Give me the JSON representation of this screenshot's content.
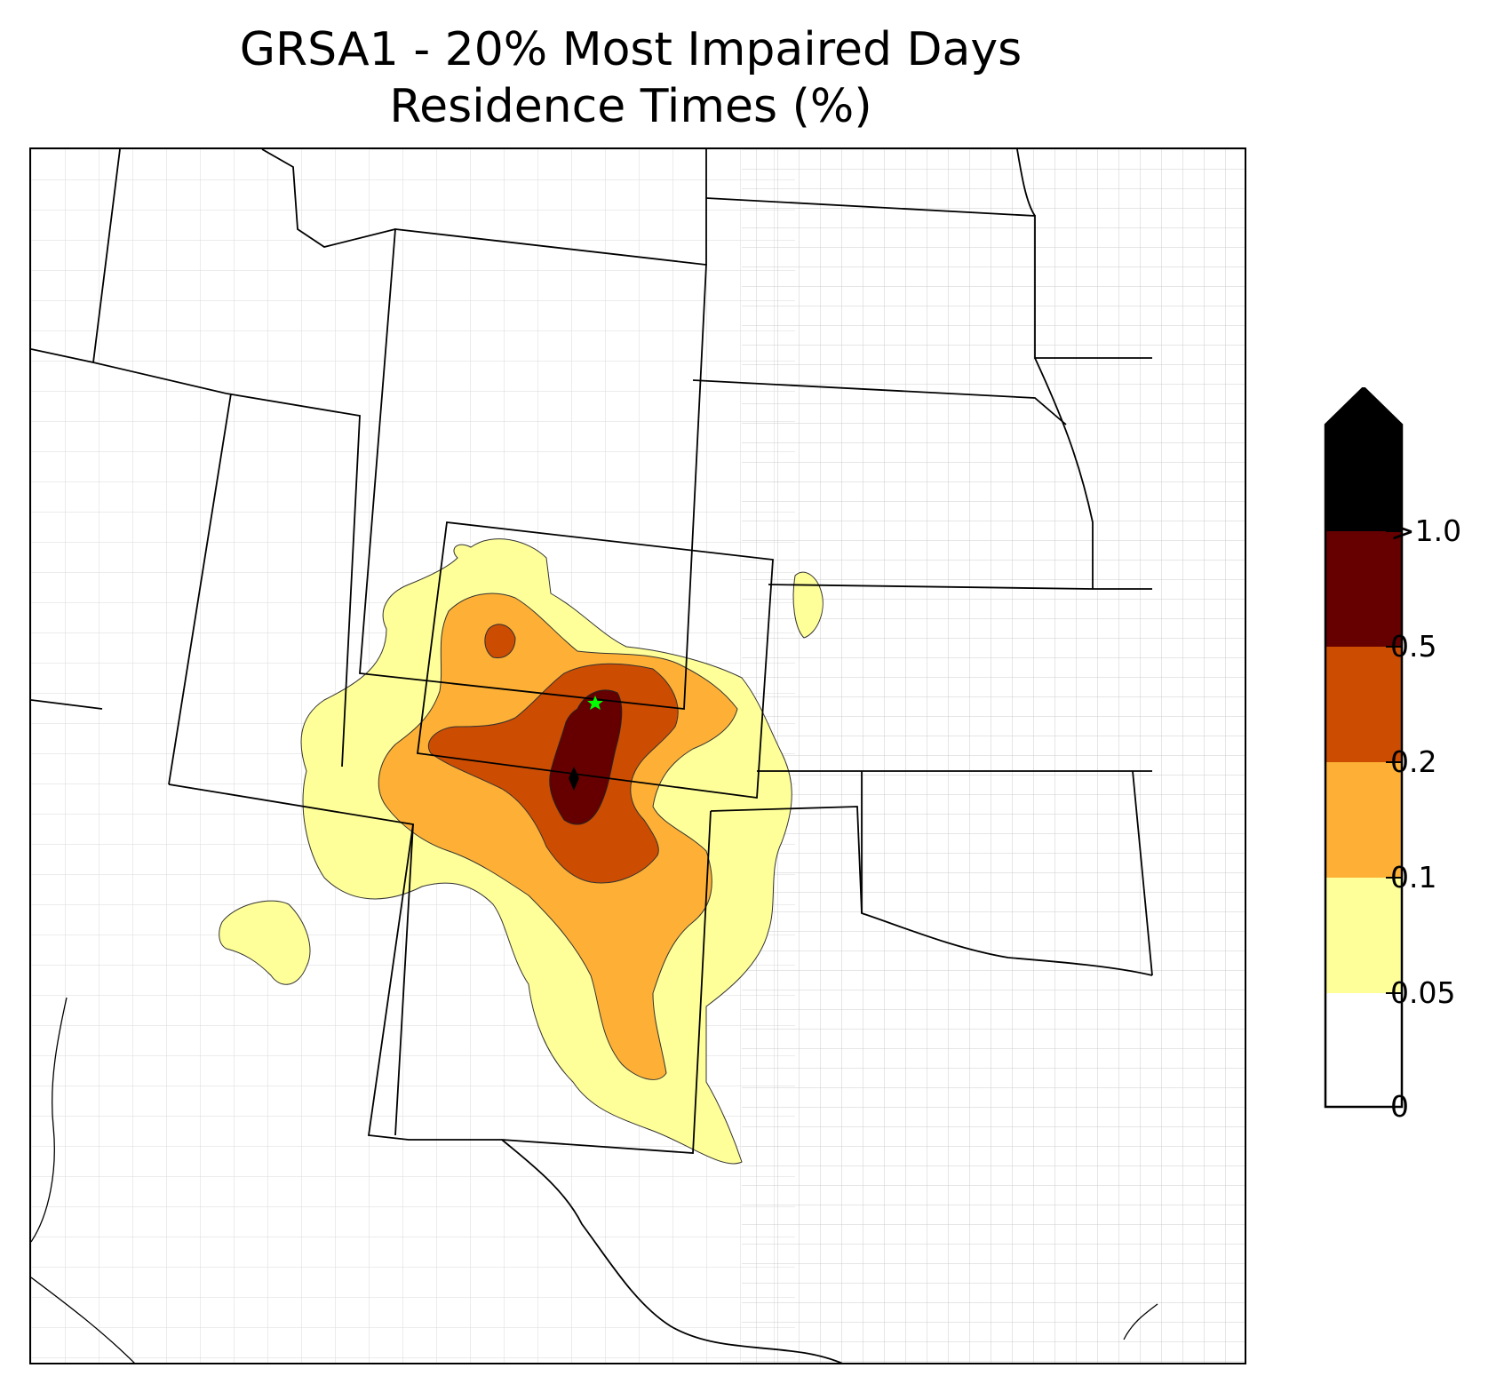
{
  "title": {
    "line1": "GRSA1 - 20% Most Impaired Days",
    "line2": "Residence Times (%)"
  },
  "colorbar": {
    "labels": [
      "0",
      "0.05",
      "0.1",
      "0.2",
      "0.5",
      ">1.0"
    ],
    "bins": [
      {
        "from": 0,
        "to": 0.05,
        "color": "#ffffff"
      },
      {
        "from": 0.05,
        "to": 0.1,
        "color": "#ffff99"
      },
      {
        "from": 0.1,
        "to": 0.2,
        "color": "#fdb035"
      },
      {
        "from": 0.2,
        "to": 0.5,
        "color": "#cc4c02"
      },
      {
        "from": 0.5,
        "to": 1.0,
        "color": "#660000"
      },
      {
        "from": 1.0,
        "to": null,
        "color": "#000000"
      }
    ],
    "extend": "max"
  },
  "map": {
    "site_marker_icon": "star-icon",
    "site_marker_color": "#00ff00",
    "state_border_color": "#000000",
    "county_border_color": "#aaaaaa"
  }
}
